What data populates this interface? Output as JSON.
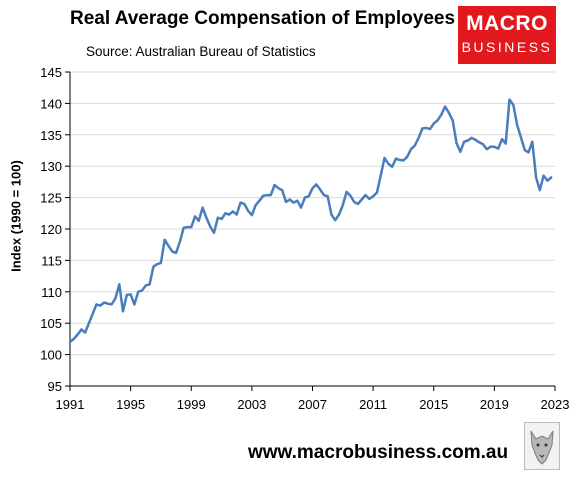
{
  "header": {
    "title": "Real Average Compensation of Employees",
    "source": "Source: Australian Bureau of Statistics"
  },
  "logo": {
    "line1": "MACRO",
    "line2": "BUSINESS",
    "color": "#e1191f"
  },
  "footer": {
    "url": "www.macrobusiness.com.au"
  },
  "colors": {
    "line": "#4a7ebb",
    "grid": "#d9d9d9",
    "axis": "#000000",
    "background": "#ffffff"
  },
  "chart_data": {
    "type": "line",
    "title": "Real Average Compensation of Employees",
    "subtitle": "Source: Australian Bureau of Statistics",
    "xlabel": "",
    "ylabel": "Index (1990 = 100)",
    "xlim": [
      1991,
      2023
    ],
    "ylim": [
      95,
      145
    ],
    "x_ticks": [
      1991,
      1995,
      1999,
      2003,
      2007,
      2011,
      2015,
      2019,
      2023
    ],
    "y_ticks": [
      95,
      100,
      105,
      110,
      115,
      120,
      125,
      130,
      135,
      140,
      145
    ],
    "grid": "horizontal",
    "series": [
      {
        "points": [
          [
            1991.0,
            102.0
          ],
          [
            1991.25,
            102.5
          ],
          [
            1991.5,
            103.2
          ],
          [
            1991.75,
            104.0
          ],
          [
            1992.0,
            103.5
          ],
          [
            1992.25,
            105.0
          ],
          [
            1992.5,
            106.5
          ],
          [
            1992.75,
            108.0
          ],
          [
            1993.0,
            107.8
          ],
          [
            1993.25,
            108.3
          ],
          [
            1993.5,
            108.1
          ],
          [
            1993.75,
            108.0
          ],
          [
            1994.0,
            109.0
          ],
          [
            1994.25,
            111.2
          ],
          [
            1994.5,
            106.9
          ],
          [
            1994.75,
            109.5
          ],
          [
            1995.0,
            109.6
          ],
          [
            1995.25,
            108.0
          ],
          [
            1995.5,
            110.0
          ],
          [
            1995.75,
            110.2
          ],
          [
            1996.0,
            111.0
          ],
          [
            1996.25,
            111.2
          ],
          [
            1996.5,
            114.0
          ],
          [
            1996.75,
            114.4
          ],
          [
            1997.0,
            114.6
          ],
          [
            1997.25,
            118.3
          ],
          [
            1997.5,
            117.3
          ],
          [
            1997.75,
            116.4
          ],
          [
            1998.0,
            116.2
          ],
          [
            1998.25,
            118.0
          ],
          [
            1998.5,
            120.2
          ],
          [
            1998.75,
            120.3
          ],
          [
            1999.0,
            120.3
          ],
          [
            1999.25,
            122.0
          ],
          [
            1999.5,
            121.3
          ],
          [
            1999.75,
            123.4
          ],
          [
            2000.0,
            121.8
          ],
          [
            2000.25,
            120.4
          ],
          [
            2000.5,
            119.4
          ],
          [
            2000.75,
            121.8
          ],
          [
            2001.0,
            121.6
          ],
          [
            2001.25,
            122.5
          ],
          [
            2001.5,
            122.3
          ],
          [
            2001.75,
            122.8
          ],
          [
            2002.0,
            122.3
          ],
          [
            2002.25,
            124.2
          ],
          [
            2002.5,
            124.0
          ],
          [
            2002.75,
            122.9
          ],
          [
            2003.0,
            122.2
          ],
          [
            2003.25,
            123.8
          ],
          [
            2003.5,
            124.5
          ],
          [
            2003.75,
            125.3
          ],
          [
            2004.0,
            125.4
          ],
          [
            2004.25,
            125.4
          ],
          [
            2004.5,
            127.0
          ],
          [
            2004.75,
            126.5
          ],
          [
            2005.0,
            126.2
          ],
          [
            2005.25,
            124.3
          ],
          [
            2005.5,
            124.7
          ],
          [
            2005.75,
            124.2
          ],
          [
            2006.0,
            124.5
          ],
          [
            2006.25,
            123.4
          ],
          [
            2006.5,
            125.0
          ],
          [
            2006.75,
            125.2
          ],
          [
            2007.0,
            126.5
          ],
          [
            2007.25,
            127.1
          ],
          [
            2007.5,
            126.3
          ],
          [
            2007.75,
            125.4
          ],
          [
            2008.0,
            125.2
          ],
          [
            2008.25,
            122.3
          ],
          [
            2008.5,
            121.4
          ],
          [
            2008.75,
            122.3
          ],
          [
            2009.0,
            123.8
          ],
          [
            2009.25,
            125.9
          ],
          [
            2009.5,
            125.3
          ],
          [
            2009.75,
            124.3
          ],
          [
            2010.0,
            124.0
          ],
          [
            2010.25,
            124.7
          ],
          [
            2010.5,
            125.4
          ],
          [
            2010.75,
            124.8
          ],
          [
            2011.0,
            125.2
          ],
          [
            2011.25,
            125.8
          ],
          [
            2011.5,
            128.5
          ],
          [
            2011.75,
            131.3
          ],
          [
            2012.0,
            130.4
          ],
          [
            2012.25,
            129.9
          ],
          [
            2012.5,
            131.2
          ],
          [
            2012.75,
            131.0
          ],
          [
            2013.0,
            130.9
          ],
          [
            2013.25,
            131.5
          ],
          [
            2013.5,
            132.7
          ],
          [
            2013.75,
            133.3
          ],
          [
            2014.0,
            134.5
          ],
          [
            2014.25,
            136.0
          ],
          [
            2014.5,
            136.1
          ],
          [
            2014.75,
            135.9
          ],
          [
            2015.0,
            136.8
          ],
          [
            2015.25,
            137.3
          ],
          [
            2015.5,
            138.2
          ],
          [
            2015.75,
            139.5
          ],
          [
            2016.0,
            138.5
          ],
          [
            2016.25,
            137.3
          ],
          [
            2016.5,
            133.7
          ],
          [
            2016.75,
            132.3
          ],
          [
            2017.0,
            133.9
          ],
          [
            2017.25,
            134.1
          ],
          [
            2017.5,
            134.5
          ],
          [
            2017.75,
            134.2
          ],
          [
            2018.0,
            133.8
          ],
          [
            2018.25,
            133.5
          ],
          [
            2018.5,
            132.7
          ],
          [
            2018.75,
            133.1
          ],
          [
            2019.0,
            133.1
          ],
          [
            2019.25,
            132.8
          ],
          [
            2019.5,
            134.3
          ],
          [
            2019.75,
            133.6
          ],
          [
            2020.0,
            140.6
          ],
          [
            2020.25,
            139.8
          ],
          [
            2020.5,
            136.6
          ],
          [
            2020.75,
            134.6
          ],
          [
            2021.0,
            132.6
          ],
          [
            2021.25,
            132.2
          ],
          [
            2021.5,
            133.9
          ],
          [
            2021.75,
            128.2
          ],
          [
            2022.0,
            126.2
          ],
          [
            2022.25,
            128.5
          ],
          [
            2022.5,
            127.7
          ],
          [
            2022.75,
            128.2
          ]
        ]
      }
    ]
  }
}
